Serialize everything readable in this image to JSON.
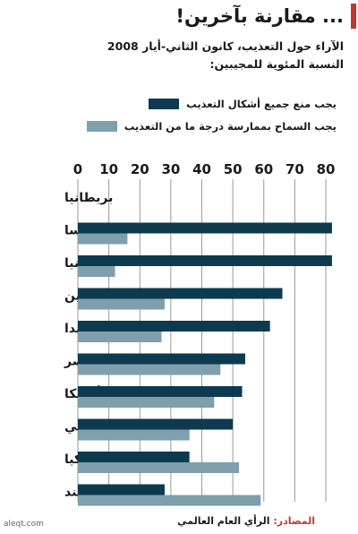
{
  "title": "... مقارنة بآخرين!",
  "subtitle_line1": "الآراء حول التعذيب، كانون الثاني-أيار 2008",
  "subtitle_line2": "النسبة المئوية للمجيبين:",
  "source_label": "المصادر:",
  "source_text": "الرأي العام العالمي",
  "watermark": "aleqt.com",
  "colors": {
    "series1": "#0d3a4f",
    "series2": "#7f9fad",
    "accent": "#c0392b"
  },
  "chart_data": {
    "type": "bar",
    "orientation": "horizontal",
    "title": "",
    "xlabel": "",
    "ylabel": "",
    "xlim": [
      0,
      80
    ],
    "x_ticks": [
      "0",
      "10",
      "20",
      "30",
      "40",
      "50",
      "60",
      "70",
      "80"
    ],
    "grid": true,
    "legend_position": "top-right",
    "categories": [
      "بريطانيا",
      "فرنسا",
      "إسبانيا",
      "الصين",
      "بولندا",
      "مصر",
      "أمريكا",
      "روسي",
      "تركيا",
      "الهند"
    ],
    "series": [
      {
        "name": "يجب منع جميع أشكال التعذيب",
        "values": [
          null,
          82,
          82,
          66,
          62,
          54,
          53,
          50,
          36,
          28
        ]
      },
      {
        "name": "يجب السماح بممارسة درجة ما من التعذيب",
        "values": [
          null,
          16,
          12,
          28,
          27,
          46,
          44,
          36,
          52,
          59
        ]
      }
    ]
  }
}
